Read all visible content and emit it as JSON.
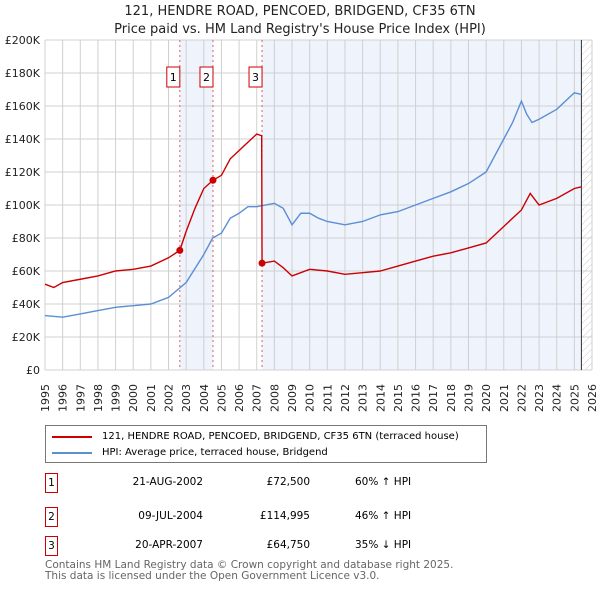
{
  "title": "121, HENDRE ROAD, PENCOED, BRIDGEND, CF35 6TN",
  "subtitle": "Price paid vs. HM Land Registry's House Price Index (HPI)",
  "chart_data": {
    "type": "line",
    "xlim": [
      1995,
      2026
    ],
    "ylim": [
      0,
      200000
    ],
    "y_ticks": [
      0,
      20000,
      40000,
      60000,
      80000,
      100000,
      120000,
      140000,
      160000,
      180000,
      200000
    ],
    "y_tick_labels": [
      "£0",
      "£20K",
      "£40K",
      "£60K",
      "£80K",
      "£100K",
      "£120K",
      "£140K",
      "£160K",
      "£180K",
      "£200K"
    ],
    "x_tick_labels": [
      "1995",
      "1996",
      "1997",
      "1998",
      "1999",
      "2000",
      "2001",
      "2002",
      "2003",
      "2004",
      "2005",
      "2006",
      "2007",
      "2008",
      "2009",
      "2010",
      "2011",
      "2012",
      "2013",
      "2014",
      "2015",
      "2016",
      "2017",
      "2018",
      "2019",
      "2020",
      "2021",
      "2022",
      "2023",
      "2024",
      "2025",
      "2026"
    ],
    "grid": true,
    "series": [
      {
        "name": "121, HENDRE ROAD, PENCOED, BRIDGEND, CF35 6TN (terraced house)",
        "color": "#cc0000",
        "x": [
          1995,
          1995.5,
          1996,
          1997,
          1998,
          1999,
          2000,
          2001,
          2002,
          2002.64,
          2003,
          2003.5,
          2004,
          2004.52,
          2005,
          2005.5,
          2006,
          2006.5,
          2007,
          2007.28,
          2007.3,
          2008,
          2008.5,
          2009,
          2010,
          2011,
          2012,
          2013,
          2014,
          2015,
          2016,
          2017,
          2018,
          2019,
          2020,
          2021,
          2022,
          2022.5,
          2023,
          2024,
          2025,
          2025.4
        ],
        "values": [
          52000,
          50000,
          53000,
          55000,
          57000,
          60000,
          61000,
          63000,
          68000,
          72500,
          84000,
          98000,
          110000,
          114995,
          118000,
          128000,
          133000,
          138000,
          143000,
          142000,
          64750,
          66000,
          62000,
          57000,
          61000,
          60000,
          58000,
          59000,
          60000,
          63000,
          66000,
          69000,
          71000,
          74000,
          77000,
          87000,
          97000,
          107000,
          100000,
          104000,
          110000,
          111000
        ]
      },
      {
        "name": "HPI: Average price, terraced house, Bridgend",
        "color": "#5b8fd4",
        "x": [
          1995,
          1996,
          1997,
          1998,
          1999,
          2000,
          2001,
          2002,
          2003,
          2004,
          2004.5,
          2005,
          2005.5,
          2006,
          2006.5,
          2007,
          2008,
          2008.5,
          2009,
          2009.5,
          2010,
          2010.5,
          2011,
          2012,
          2013,
          2014,
          2015,
          2016,
          2017,
          2018,
          2019,
          2020,
          2021,
          2021.5,
          2022,
          2022.3,
          2022.6,
          2023,
          2024,
          2025,
          2025.4
        ],
        "values": [
          33000,
          32000,
          34000,
          36000,
          38000,
          39000,
          40000,
          44000,
          53000,
          70000,
          80000,
          83000,
          92000,
          95000,
          99000,
          99000,
          101000,
          98000,
          88000,
          95000,
          95000,
          92000,
          90000,
          88000,
          90000,
          94000,
          96000,
          100000,
          104000,
          108000,
          113000,
          120000,
          140000,
          150000,
          163000,
          155000,
          150000,
          152000,
          158000,
          168000,
          167000
        ]
      }
    ],
    "annotations": [
      {
        "label": "1",
        "x": 2002.64
      },
      {
        "label": "2",
        "x": 2004.52
      },
      {
        "label": "3",
        "x": 2007.3
      }
    ]
  },
  "sales": [
    {
      "num": "1",
      "date": "21-AUG-2002",
      "price": "£72,500",
      "hpi": "60% ↑ HPI"
    },
    {
      "num": "2",
      "date": "09-JUL-2004",
      "price": "£114,995",
      "hpi": "46% ↑ HPI"
    },
    {
      "num": "3",
      "date": "20-APR-2007",
      "price": "£64,750",
      "hpi": "35% ↓ HPI"
    }
  ],
  "footer": [
    "Contains HM Land Registry data © Crown copyright and database right 2025.",
    "This data is licensed under the Open Government Licence v3.0."
  ]
}
